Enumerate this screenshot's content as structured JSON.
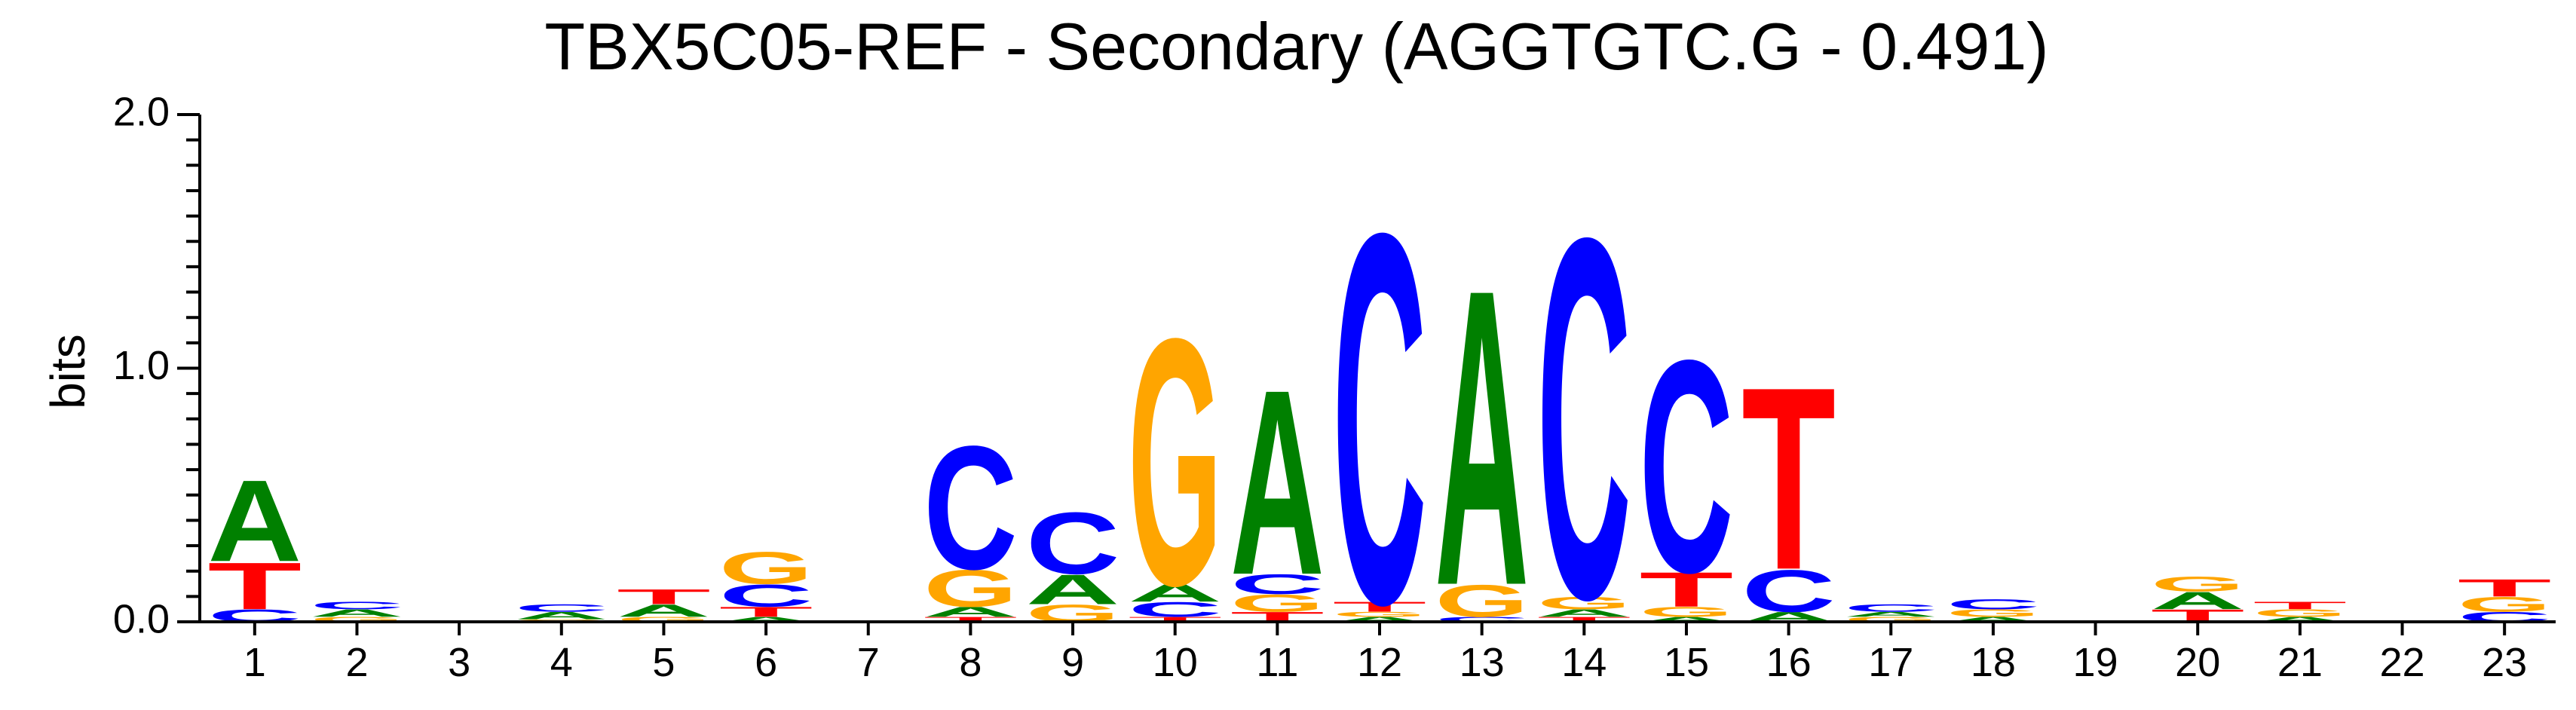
{
  "chart_data": {
    "type": "sequence-logo",
    "title": "TBX5C05-REF - Secondary (AGGTGTC.G - 0.491)",
    "xlabel": "",
    "ylabel": "bits",
    "ylim": [
      0,
      2.0
    ],
    "y_ticks": [
      "0.0",
      "1.0",
      "2.0"
    ],
    "colors": {
      "A": "#008000",
      "C": "#0000ff",
      "G": "#ffa500",
      "T": "#ff0000"
    },
    "positions": [
      {
        "x": "1",
        "stack": [
          [
            "C",
            0.05
          ],
          [
            "T",
            0.19
          ],
          [
            "A",
            0.33
          ]
        ]
      },
      {
        "x": "2",
        "stack": [
          [
            "G",
            0.02
          ],
          [
            "A",
            0.03
          ],
          [
            "C",
            0.03
          ]
        ]
      },
      {
        "x": "3",
        "stack": []
      },
      {
        "x": "4",
        "stack": [
          [
            "G",
            0.01
          ],
          [
            "A",
            0.03
          ],
          [
            "C",
            0.03
          ]
        ]
      },
      {
        "x": "5",
        "stack": [
          [
            "G",
            0.02
          ],
          [
            "A",
            0.05
          ],
          [
            "T",
            0.06
          ]
        ]
      },
      {
        "x": "6",
        "stack": [
          [
            "A",
            0.02
          ],
          [
            "T",
            0.04
          ],
          [
            "C",
            0.09
          ],
          [
            "G",
            0.13
          ]
        ]
      },
      {
        "x": "7",
        "stack": []
      },
      {
        "x": "8",
        "stack": [
          [
            "T",
            0.02
          ],
          [
            "A",
            0.04
          ],
          [
            "G",
            0.15
          ],
          [
            "C",
            0.5
          ]
        ]
      },
      {
        "x": "9",
        "stack": [
          [
            "G",
            0.07
          ],
          [
            "A",
            0.12
          ],
          [
            "C",
            0.25
          ]
        ]
      },
      {
        "x": "10",
        "stack": [
          [
            "T",
            0.02
          ],
          [
            "C",
            0.06
          ],
          [
            "A",
            0.07
          ],
          [
            "G",
            1.0
          ]
        ]
      },
      {
        "x": "11",
        "stack": [
          [
            "T",
            0.04
          ],
          [
            "G",
            0.07
          ],
          [
            "C",
            0.08
          ],
          [
            "A",
            0.75
          ]
        ]
      },
      {
        "x": "12",
        "stack": [
          [
            "A",
            0.02
          ],
          [
            "G",
            0.02
          ],
          [
            "T",
            0.04
          ],
          [
            "C",
            1.5
          ]
        ]
      },
      {
        "x": "13",
        "stack": [
          [
            "C",
            0.02
          ],
          [
            "G",
            0.13
          ],
          [
            "A",
            1.2
          ]
        ]
      },
      {
        "x": "14",
        "stack": [
          [
            "T",
            0.02
          ],
          [
            "A",
            0.03
          ],
          [
            "G",
            0.05
          ],
          [
            "C",
            1.46
          ]
        ]
      },
      {
        "x": "15",
        "stack": [
          [
            "A",
            0.02
          ],
          [
            "G",
            0.04
          ],
          [
            "T",
            0.14
          ],
          [
            "C",
            0.86
          ]
        ]
      },
      {
        "x": "16",
        "stack": [
          [
            "A",
            0.04
          ],
          [
            "C",
            0.17
          ],
          [
            "T",
            0.74
          ]
        ]
      },
      {
        "x": "17",
        "stack": [
          [
            "G",
            0.02
          ],
          [
            "A",
            0.02
          ],
          [
            "C",
            0.03
          ]
        ]
      },
      {
        "x": "18",
        "stack": [
          [
            "A",
            0.02
          ],
          [
            "G",
            0.03
          ],
          [
            "C",
            0.04
          ]
        ]
      },
      {
        "x": "19",
        "stack": []
      },
      {
        "x": "20",
        "stack": [
          [
            "T",
            0.05
          ],
          [
            "A",
            0.07
          ],
          [
            "G",
            0.06
          ]
        ]
      },
      {
        "x": "21",
        "stack": [
          [
            "A",
            0.02
          ],
          [
            "G",
            0.03
          ],
          [
            "T",
            0.03
          ]
        ]
      },
      {
        "x": "22",
        "stack": []
      },
      {
        "x": "23",
        "stack": [
          [
            "C",
            0.04
          ],
          [
            "G",
            0.06
          ],
          [
            "T",
            0.07
          ]
        ]
      }
    ]
  }
}
